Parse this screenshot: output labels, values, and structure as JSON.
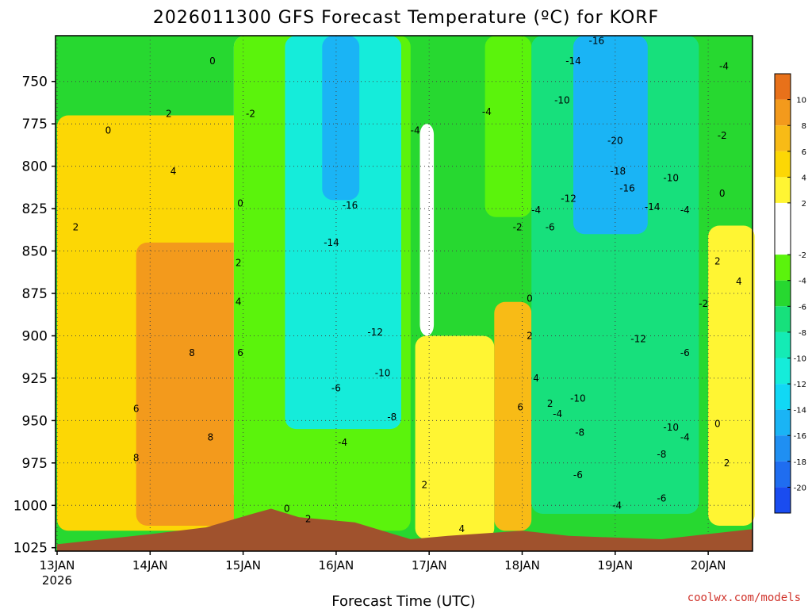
{
  "chart_data": {
    "type": "heatmap",
    "title": "2026011300 GFS Forecast Temperature (ºC) for KORF",
    "xlabel": "Forecast Time (UTC)",
    "ylabel": "",
    "credit": "coolwx.com/models",
    "x_ticks": [
      {
        "label": "13JAN",
        "sub": "2026",
        "day": 0
      },
      {
        "label": "14JAN",
        "day": 1
      },
      {
        "label": "15JAN",
        "day": 2
      },
      {
        "label": "16JAN",
        "day": 3
      },
      {
        "label": "17JAN",
        "day": 4
      },
      {
        "label": "18JAN",
        "day": 5
      },
      {
        "label": "19JAN",
        "day": 6
      },
      {
        "label": "20JAN",
        "day": 7
      }
    ],
    "xlim": [
      0,
      7.5
    ],
    "y_ticks": [
      750,
      775,
      800,
      825,
      850,
      875,
      900,
      925,
      950,
      975,
      1000,
      1025
    ],
    "ylim": [
      1027,
      723
    ],
    "colorbar": {
      "min": -22,
      "max": 12,
      "labels": [
        10,
        8,
        6,
        4,
        2,
        -2,
        -4,
        -6,
        -8,
        -10,
        -12,
        -14,
        -16,
        -18,
        -20
      ],
      "bands": [
        {
          "from": 10,
          "to": 12,
          "color": "#e8711a"
        },
        {
          "from": 8,
          "to": 10,
          "color": "#f39a1c"
        },
        {
          "from": 6,
          "to": 8,
          "color": "#f8bb16"
        },
        {
          "from": 4,
          "to": 6,
          "color": "#fcd705"
        },
        {
          "from": 2,
          "to": 4,
          "color": "#fff533"
        },
        {
          "from": -2,
          "to": 2,
          "color": "#ffffff"
        },
        {
          "from": -4,
          "to": -2,
          "color": "#5bf30c"
        },
        {
          "from": -6,
          "to": -4,
          "color": "#27d830"
        },
        {
          "from": -8,
          "to": -6,
          "color": "#17e07c"
        },
        {
          "from": -10,
          "to": -8,
          "color": "#14ebb5"
        },
        {
          "from": -12,
          "to": -10,
          "color": "#15ecda"
        },
        {
          "from": -14,
          "to": -12,
          "color": "#11d8f5"
        },
        {
          "from": -16,
          "to": -14,
          "color": "#1ab4f5"
        },
        {
          "from": -18,
          "to": -16,
          "color": "#1f8ff2"
        },
        {
          "from": -20,
          "to": -18,
          "color": "#1f6df0"
        },
        {
          "from": -22,
          "to": -20,
          "color": "#1a4cf0"
        }
      ]
    },
    "terrain_color": "#a0522d",
    "zero_contour_color": "#c0247c",
    "surface_pressure": [
      {
        "day": 0.0,
        "p": 1023
      },
      {
        "day": 1.0,
        "p": 1017
      },
      {
        "day": 1.6,
        "p": 1013
      },
      {
        "day": 2.1,
        "p": 1005
      },
      {
        "day": 2.3,
        "p": 1002
      },
      {
        "day": 2.6,
        "p": 1007
      },
      {
        "day": 3.2,
        "p": 1010
      },
      {
        "day": 3.8,
        "p": 1020
      },
      {
        "day": 4.2,
        "p": 1018
      },
      {
        "day": 5.0,
        "p": 1015
      },
      {
        "day": 5.5,
        "p": 1018
      },
      {
        "day": 6.5,
        "p": 1020
      },
      {
        "day": 7.5,
        "p": 1014
      }
    ],
    "temperature_regions": [
      {
        "label": "4",
        "value": 4,
        "day_from": 0.0,
        "day_to": 2.35,
        "p_top": 770,
        "p_bottom": 1015
      },
      {
        "label": "8",
        "value": 8,
        "day_from": 0.85,
        "day_to": 2.1,
        "p_top": 845,
        "p_bottom": 1012
      },
      {
        "label": "0",
        "value": 0,
        "day_from": 1.9,
        "day_to": 2.45,
        "p_top": 723,
        "p_bottom": 1000
      },
      {
        "label": "-4",
        "value": -4,
        "day_from": 1.9,
        "day_to": 3.8,
        "p_top": 723,
        "p_bottom": 1015
      },
      {
        "label": "-12",
        "value": -12,
        "day_from": 2.45,
        "day_to": 3.7,
        "p_top": 723,
        "p_bottom": 955
      },
      {
        "label": "-16",
        "value": -16,
        "day_from": 2.85,
        "day_to": 3.25,
        "p_top": 723,
        "p_bottom": 820
      },
      {
        "label": "2",
        "value": 2,
        "day_from": 3.85,
        "day_to": 4.7,
        "p_top": 900,
        "p_bottom": 1020
      },
      {
        "label": "0",
        "value": 0,
        "day_from": 3.9,
        "day_to": 4.05,
        "p_top": 775,
        "p_bottom": 900
      },
      {
        "label": "-4",
        "value": -4,
        "day_from": 4.6,
        "day_to": 5.1,
        "p_top": 723,
        "p_bottom": 830
      },
      {
        "label": "6",
        "value": 6,
        "day_from": 4.7,
        "day_to": 5.1,
        "p_top": 880,
        "p_bottom": 1015
      },
      {
        "label": "-8",
        "value": -8,
        "day_from": 5.1,
        "day_to": 6.9,
        "p_top": 723,
        "p_bottom": 1005
      },
      {
        "label": "-16",
        "value": -16,
        "day_from": 5.55,
        "day_to": 6.35,
        "p_top": 723,
        "p_bottom": 840
      },
      {
        "label": "2",
        "value": 2,
        "day_from": 7.0,
        "day_to": 7.5,
        "p_top": 835,
        "p_bottom": 1012
      }
    ],
    "contour_labels": [
      {
        "text": "0",
        "day": 1.67,
        "p": 738
      },
      {
        "text": "0",
        "day": 0.55,
        "p": 779
      },
      {
        "text": "2",
        "day": 1.2,
        "p": 769
      },
      {
        "text": "2",
        "day": 0.2,
        "p": 836
      },
      {
        "text": "4",
        "day": 1.25,
        "p": 803
      },
      {
        "text": "8",
        "day": 1.45,
        "p": 910
      },
      {
        "text": "6",
        "day": 0.85,
        "p": 943
      },
      {
        "text": "8",
        "day": 0.85,
        "p": 972
      },
      {
        "text": "8",
        "day": 1.65,
        "p": 960
      },
      {
        "text": "2",
        "day": 1.95,
        "p": 857
      },
      {
        "text": "4",
        "day": 1.95,
        "p": 880
      },
      {
        "text": "6",
        "day": 1.97,
        "p": 910
      },
      {
        "text": "0",
        "day": 1.97,
        "p": 822
      },
      {
        "text": "-2",
        "day": 2.08,
        "p": 769
      },
      {
        "text": "0",
        "day": 2.47,
        "p": 1002
      },
      {
        "text": "2",
        "day": 2.7,
        "p": 1008
      },
      {
        "text": "-16",
        "day": 3.15,
        "p": 823
      },
      {
        "text": "-14",
        "day": 2.95,
        "p": 845
      },
      {
        "text": "-12",
        "day": 3.42,
        "p": 898
      },
      {
        "text": "-10",
        "day": 3.5,
        "p": 922
      },
      {
        "text": "-6",
        "day": 3.0,
        "p": 931
      },
      {
        "text": "-8",
        "day": 3.6,
        "p": 948
      },
      {
        "text": "-4",
        "day": 3.07,
        "p": 963
      },
      {
        "text": "-4",
        "day": 3.85,
        "p": 779
      },
      {
        "text": "2",
        "day": 3.95,
        "p": 988
      },
      {
        "text": "4",
        "day": 4.35,
        "p": 1014
      },
      {
        "text": "-4",
        "day": 4.62,
        "p": 768
      },
      {
        "text": "-2",
        "day": 4.95,
        "p": 836
      },
      {
        "text": "-4",
        "day": 5.15,
        "p": 826
      },
      {
        "text": "-6",
        "day": 5.3,
        "p": 836
      },
      {
        "text": "0",
        "day": 5.08,
        "p": 878
      },
      {
        "text": "2",
        "day": 5.08,
        "p": 900
      },
      {
        "text": "6",
        "day": 4.98,
        "p": 942
      },
      {
        "text": "4",
        "day": 5.15,
        "p": 925
      },
      {
        "text": "2",
        "day": 5.3,
        "p": 940
      },
      {
        "text": "-4",
        "day": 5.38,
        "p": 946
      },
      {
        "text": "-10",
        "day": 5.6,
        "p": 937
      },
      {
        "text": "-8",
        "day": 5.62,
        "p": 957
      },
      {
        "text": "-6",
        "day": 5.6,
        "p": 982
      },
      {
        "text": "-4",
        "day": 6.02,
        "p": 1000
      },
      {
        "text": "-12",
        "day": 5.5,
        "p": 819
      },
      {
        "text": "-10",
        "day": 5.43,
        "p": 761
      },
      {
        "text": "-14",
        "day": 5.55,
        "p": 738
      },
      {
        "text": "-16",
        "day": 5.8,
        "p": 726
      },
      {
        "text": "-20",
        "day": 6.0,
        "p": 785
      },
      {
        "text": "-18",
        "day": 6.03,
        "p": 803
      },
      {
        "text": "-16",
        "day": 6.13,
        "p": 813
      },
      {
        "text": "-14",
        "day": 6.4,
        "p": 824
      },
      {
        "text": "-10",
        "day": 6.6,
        "p": 807
      },
      {
        "text": "-12",
        "day": 6.25,
        "p": 902
      },
      {
        "text": "-10",
        "day": 6.6,
        "p": 954
      },
      {
        "text": "-8",
        "day": 6.5,
        "p": 970
      },
      {
        "text": "-6",
        "day": 6.5,
        "p": 996
      },
      {
        "text": "-4",
        "day": 6.75,
        "p": 826
      },
      {
        "text": "-6",
        "day": 6.75,
        "p": 910
      },
      {
        "text": "-4",
        "day": 6.75,
        "p": 960
      },
      {
        "text": "-2",
        "day": 6.95,
        "p": 881
      },
      {
        "text": "0",
        "day": 7.1,
        "p": 952
      },
      {
        "text": "2",
        "day": 7.2,
        "p": 975
      },
      {
        "text": "2",
        "day": 7.1,
        "p": 856
      },
      {
        "text": "4",
        "day": 7.33,
        "p": 868
      },
      {
        "text": "0",
        "day": 7.15,
        "p": 816
      },
      {
        "text": "-2",
        "day": 7.15,
        "p": 782
      },
      {
        "text": "-4",
        "day": 7.17,
        "p": 741
      }
    ]
  }
}
